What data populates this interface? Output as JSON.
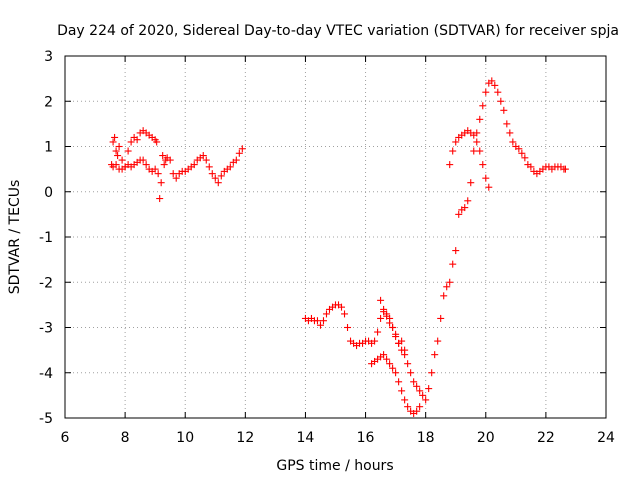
{
  "chart_data": {
    "type": "scatter",
    "title": "Day 224 of 2020, Sidereal Day-to-day VTEC variation (SDTVAR) for receiver spja",
    "xlabel": "GPS time / hours",
    "ylabel": "SDTVAR / TECUs",
    "xlim": [
      6,
      24
    ],
    "ylim": [
      -5,
      3
    ],
    "xticks": [
      6,
      8,
      10,
      12,
      14,
      16,
      18,
      20,
      22,
      24
    ],
    "yticks": [
      -5,
      -4,
      -3,
      -2,
      -1,
      0,
      1,
      2,
      3
    ],
    "xtick_labels": [
      "6",
      "8",
      "10",
      "12",
      "14",
      "16",
      "18",
      "20",
      "22",
      "24"
    ],
    "ytick_labels": [
      "-5",
      "-4",
      "-3",
      "-2",
      "-1",
      "0",
      "1",
      "2",
      "3"
    ],
    "grid": true,
    "marker": "+",
    "series": [
      {
        "name": "SDTVAR",
        "color": "#ff0000",
        "x": [
          7.55,
          7.6,
          7.65,
          7.7,
          7.75,
          7.8,
          7.9,
          8.0,
          8.1,
          8.2,
          8.3,
          8.4,
          8.5,
          8.6,
          8.7,
          8.8,
          8.9,
          9.0,
          9.05,
          7.6,
          7.7,
          7.8,
          7.9,
          8.0,
          8.1,
          8.2,
          8.3,
          8.4,
          8.5,
          8.6,
          8.7,
          8.8,
          8.9,
          9.0,
          9.1,
          9.15,
          9.2,
          9.25,
          9.3,
          9.35,
          9.4,
          9.5,
          9.6,
          9.7,
          9.8,
          9.9,
          10.0,
          10.1,
          10.2,
          10.3,
          10.4,
          10.5,
          10.6,
          10.7,
          10.8,
          10.9,
          11.0,
          11.1,
          11.2,
          11.3,
          11.4,
          11.5,
          11.6,
          11.7,
          11.8,
          11.9,
          14.0,
          14.1,
          14.2,
          14.3,
          14.4,
          14.5,
          14.6,
          14.7,
          14.8,
          14.9,
          15.0,
          15.1,
          15.2,
          15.3,
          15.4,
          15.5,
          15.6,
          15.7,
          15.8,
          15.9,
          16.0,
          16.1,
          16.2,
          16.3,
          16.4,
          16.5,
          16.6,
          16.7,
          16.8,
          16.9,
          17.0,
          17.1,
          17.2,
          17.3,
          16.5,
          16.6,
          16.7,
          16.8,
          16.9,
          17.0,
          17.1,
          17.2,
          17.3,
          17.4,
          17.5,
          17.6,
          17.7,
          17.8,
          17.9,
          18.0,
          18.1,
          18.2,
          18.3,
          18.4,
          18.5,
          18.6,
          18.7,
          18.8,
          18.9,
          19.0,
          19.1,
          19.2,
          19.3,
          19.4,
          19.5,
          19.6,
          19.7,
          19.8,
          19.9,
          20.0,
          20.1,
          20.2,
          20.3,
          20.4,
          20.5,
          20.6,
          20.7,
          20.8,
          20.9,
          21.0,
          21.1,
          21.2,
          21.3,
          21.4,
          21.5,
          21.6,
          21.7,
          21.8,
          21.9,
          22.0,
          22.1,
          22.2,
          22.3,
          22.4,
          22.5,
          22.6,
          22.65,
          16.2,
          16.3,
          16.4,
          16.5,
          16.6,
          16.7,
          16.8,
          16.9,
          17.0,
          17.1,
          17.2,
          17.3,
          17.4,
          17.5,
          17.6,
          17.7,
          17.8,
          18.8,
          18.9,
          19.0,
          19.1,
          19.2,
          19.3,
          19.4,
          19.5,
          19.6,
          19.7,
          19.8,
          19.9,
          20.0,
          20.1
        ],
        "y": [
          0.6,
          1.1,
          1.2,
          0.9,
          0.8,
          1.0,
          0.7,
          0.55,
          0.9,
          1.1,
          1.2,
          1.15,
          1.3,
          1.35,
          1.3,
          1.25,
          1.2,
          1.15,
          1.1,
          0.55,
          0.6,
          0.5,
          0.5,
          0.55,
          0.6,
          0.55,
          0.6,
          0.65,
          0.7,
          0.7,
          0.6,
          0.5,
          0.45,
          0.5,
          0.4,
          -0.15,
          0.2,
          0.8,
          0.6,
          0.7,
          0.75,
          0.7,
          0.4,
          0.3,
          0.4,
          0.45,
          0.45,
          0.5,
          0.55,
          0.6,
          0.7,
          0.75,
          0.8,
          0.7,
          0.55,
          0.4,
          0.3,
          0.2,
          0.35,
          0.45,
          0.5,
          0.55,
          0.65,
          0.7,
          0.85,
          0.95,
          -2.8,
          -2.85,
          -2.8,
          -2.85,
          -2.85,
          -2.95,
          -2.85,
          -2.7,
          -2.6,
          -2.55,
          -2.5,
          -2.5,
          -2.55,
          -2.7,
          -3.0,
          -3.3,
          -3.35,
          -3.4,
          -3.35,
          -3.35,
          -3.3,
          -3.3,
          -3.35,
          -3.3,
          -3.1,
          -2.8,
          -2.65,
          -2.75,
          -2.9,
          -3.0,
          -3.15,
          -3.35,
          -3.5,
          -3.6,
          -2.4,
          -2.6,
          -2.7,
          -2.8,
          -3.0,
          -3.2,
          -3.35,
          -3.3,
          -3.5,
          -3.8,
          -4.0,
          -4.2,
          -4.3,
          -4.4,
          -4.5,
          -4.6,
          -4.35,
          -4.0,
          -3.6,
          -3.3,
          -2.8,
          -2.3,
          -2.1,
          -2.0,
          -1.6,
          -1.3,
          -0.5,
          -0.4,
          -0.35,
          -0.2,
          0.2,
          0.9,
          1.3,
          1.6,
          1.9,
          2.2,
          2.4,
          2.45,
          2.35,
          2.2,
          2.0,
          1.8,
          1.5,
          1.3,
          1.1,
          1.0,
          0.95,
          0.85,
          0.75,
          0.6,
          0.55,
          0.45,
          0.4,
          0.45,
          0.5,
          0.55,
          0.55,
          0.5,
          0.55,
          0.55,
          0.55,
          0.5,
          0.5,
          -3.8,
          -3.75,
          -3.7,
          -3.65,
          -3.6,
          -3.7,
          -3.8,
          -3.9,
          -4.0,
          -4.2,
          -4.4,
          -4.6,
          -4.75,
          -4.85,
          -4.9,
          -4.85,
          -4.75,
          0.6,
          0.9,
          1.1,
          1.2,
          1.25,
          1.3,
          1.35,
          1.3,
          1.25,
          1.1,
          0.9,
          0.6,
          0.3,
          0.1
        ]
      }
    ]
  }
}
